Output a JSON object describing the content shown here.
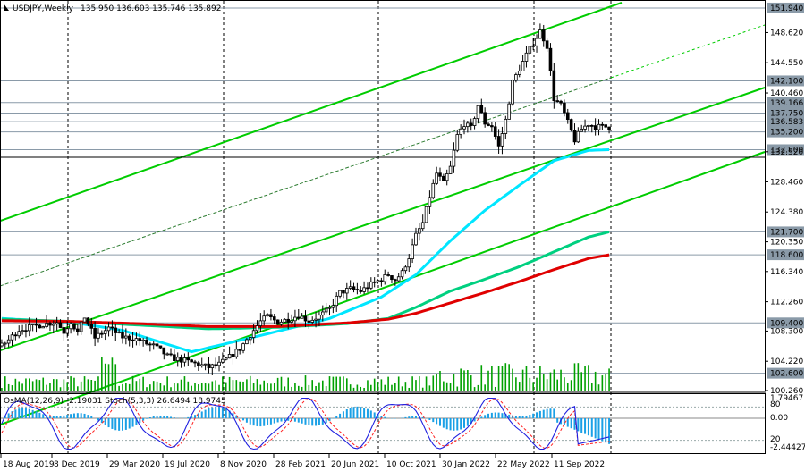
{
  "header": {
    "symbol": "USDJPY,Weekly",
    "ohlc": "135.950 136.603 135.746 135.892"
  },
  "oscillator_header": {
    "text": "OsMA(12,26,9) -2.19031  Stoch(5,3,3) 26.6494 18.9745"
  },
  "chart_data": {
    "type": "candlestick",
    "symbol": "USDJPY",
    "timeframe": "Weekly",
    "price_axis": {
      "ylim": [
        100.26,
        152.9
      ],
      "tick_labels": [
        "151.940",
        "148.620",
        "144.550",
        "142.100",
        "140.460",
        "139.166",
        "137.750",
        "136.583",
        "135.200",
        "132.800",
        "132.520",
        "128.460",
        "124.380",
        "121.700",
        "120.350",
        "118.600",
        "116.340",
        "112.260",
        "109.400",
        "108.300",
        "104.220",
        "102.600",
        "100.260"
      ]
    },
    "highlighted_levels": [
      151.94,
      142.1,
      139.166,
      137.75,
      136.583,
      135.2,
      132.8,
      121.7,
      118.6,
      109.4,
      102.6
    ],
    "time_axis": {
      "labels": [
        "18 Aug 2019",
        "8 Dec 2019",
        "29 Mar 2020",
        "19 Jul 2020",
        "8 Nov 2020",
        "28 Feb 2021",
        "20 Jun 2021",
        "10 Oct 2021",
        "30 Jan 2022",
        "22 May 2022",
        "11 Sep 2022"
      ]
    },
    "price_path": {
      "x_index": [
        0,
        2,
        5,
        9,
        13,
        16,
        18,
        20,
        22,
        24,
        27,
        31,
        35,
        39,
        42,
        44,
        46,
        48,
        50,
        53,
        57,
        60,
        63,
        66,
        69,
        72,
        75,
        77,
        80,
        83,
        86,
        89,
        92,
        95,
        98,
        101,
        104,
        107,
        110,
        112,
        114,
        116,
        118,
        120,
        122,
        124,
        126,
        128,
        130,
        132,
        134,
        136,
        138,
        140,
        142,
        144,
        146,
        148,
        150,
        152,
        154,
        156,
        158,
        160,
        162,
        164,
        166,
        168,
        170,
        172,
        174,
        176
      ],
      "close": [
        106.3,
        107.1,
        108.5,
        108.9,
        109.3,
        109.5,
        108.2,
        109.6,
        108.1,
        110.2,
        107.4,
        108.7,
        107.5,
        107.2,
        106.6,
        106.3,
        105.7,
        104.9,
        104.6,
        104.3,
        103.8,
        103.4,
        103.8,
        104.8,
        105.9,
        107.8,
        109.6,
        110.3,
        109.5,
        109.9,
        110.4,
        109.7,
        110.3,
        111.3,
        113.5,
        114.0,
        113.7,
        114.6,
        115.3,
        115.9,
        115.2,
        116.2,
        118.3,
        121.2,
        122.9,
        126.5,
        129.6,
        128.3,
        130.4,
        134.7,
        136.3,
        135.7,
        138.8,
        136.4,
        136.0,
        133.2,
        136.8,
        141.9,
        143.7,
        145.6,
        147.2,
        148.8,
        146.8,
        139.7,
        138.8,
        136.5,
        134.1,
        135.6,
        136.3,
        135.89,
        135.89,
        135.89
      ]
    },
    "moving_averages": [
      {
        "color": "#00e6ff",
        "x_index": [
          0,
          20,
          35,
          55,
          75,
          95,
          110,
          120,
          130,
          140,
          150,
          160,
          170,
          176
        ],
        "values": [
          110.0,
          109.5,
          108.4,
          105.5,
          107.7,
          110.0,
          112.9,
          115.9,
          120.5,
          124.6,
          128.0,
          131.3,
          132.7,
          132.8
        ]
      },
      {
        "color": "#00d080",
        "x_index": [
          0,
          20,
          40,
          60,
          80,
          100,
          112,
          120,
          130,
          140,
          150,
          160,
          170,
          176
        ],
        "values": [
          109.9,
          109.6,
          109.1,
          108.6,
          108.8,
          109.3,
          110.0,
          111.5,
          113.7,
          115.3,
          117.0,
          119.0,
          121.0,
          121.7
        ]
      },
      {
        "color": "#e00000",
        "x_index": [
          0,
          20,
          40,
          60,
          80,
          100,
          112,
          120,
          130,
          140,
          150,
          160,
          170,
          176
        ],
        "values": [
          109.7,
          109.6,
          109.3,
          108.9,
          108.9,
          109.4,
          109.9,
          110.7,
          112.1,
          113.5,
          115.0,
          116.6,
          118.1,
          118.6
        ]
      }
    ],
    "oscillator": {
      "osma_header": "OsMA(12,26,9) -2.19031",
      "stochastic_header": "Stoch(5,3,3) 26.6494 18.9745",
      "tick_labels": [
        "1.79467",
        "80",
        "0.00",
        "20",
        "-2.44427"
      ]
    }
  },
  "colors": {
    "background": "#ffffff",
    "channel": "#00cc00",
    "candle": "#000000",
    "volume": "#00a000",
    "osma": "#1aa0e6",
    "stoch_main": "#2020e0",
    "stoch_signal": "#ff2020"
  }
}
